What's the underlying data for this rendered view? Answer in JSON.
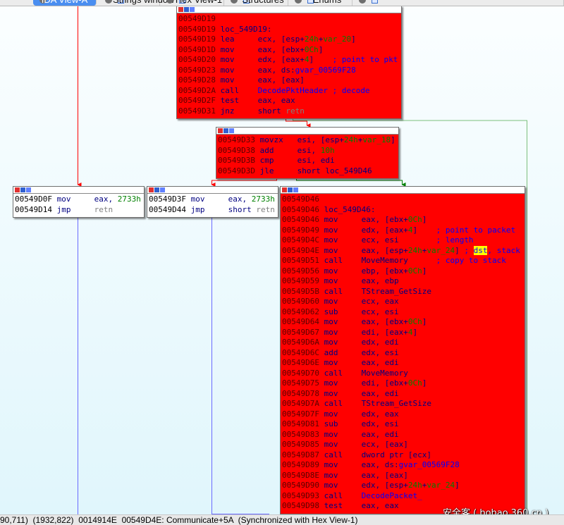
{
  "tabs": [
    {
      "label": "IDA View-A",
      "active": true
    },
    {
      "label": "Strings window",
      "active": false
    },
    {
      "label": "Hex View-1",
      "active": false
    },
    {
      "label": "Structures",
      "active": false
    },
    {
      "label": "Enums",
      "active": false
    }
  ],
  "colors": {
    "block_bg": "#ff0000",
    "edge_true": "#008000",
    "edge_false": "#ff0000",
    "edge_uncond": "#0000ff",
    "number": "#008000",
    "name": "#0000ff",
    "mnemonic": "#000080"
  },
  "blocks": [
    {
      "id": "loc_549D19",
      "style": "red",
      "lines": [
        {
          "addr": "00549D19",
          "mnem": "",
          "ops": []
        },
        {
          "addr": "00549D19",
          "mnem": "",
          "ops": [
            [
              "loc_549D19:",
              ""
            ]
          ]
        },
        {
          "addr": "00549D19",
          "mnem": "lea",
          "ops": [
            [
              "ecx, [esp+",
              ""
            ],
            [
              "24h",
              "g"
            ],
            [
              "+",
              ""
            ],
            [
              "var_20",
              "g"
            ],
            [
              "]",
              ""
            ]
          ]
        },
        {
          "addr": "00549D1D",
          "mnem": "mov",
          "ops": [
            [
              "eax, [ebx+",
              ""
            ],
            [
              "0Ch",
              "g"
            ],
            [
              "]",
              ""
            ]
          ]
        },
        {
          "addr": "00549D20",
          "mnem": "mov",
          "ops": [
            [
              "edx, [eax+",
              ""
            ],
            [
              "4",
              "g"
            ],
            [
              "]    ",
              ""
            ],
            [
              "; point to pkt",
              "b"
            ]
          ]
        },
        {
          "addr": "00549D23",
          "mnem": "mov",
          "ops": [
            [
              "eax, ds:",
              ""
            ],
            [
              "gvar_00569F28",
              "b"
            ]
          ]
        },
        {
          "addr": "00549D28",
          "mnem": "mov",
          "ops": [
            [
              "eax, [eax]",
              ""
            ]
          ]
        },
        {
          "addr": "00549D2A",
          "mnem": "call",
          "ops": [
            [
              "DecodePktHeader",
              "b"
            ],
            [
              " ",
              ""
            ],
            [
              "; decode",
              "b"
            ]
          ]
        },
        {
          "addr": "00549D2F",
          "mnem": "test",
          "ops": [
            [
              "eax, eax",
              ""
            ]
          ]
        },
        {
          "addr": "00549D31",
          "mnem": "jnz",
          "ops": [
            [
              "short ",
              ""
            ],
            [
              "retn",
              "gray"
            ]
          ]
        }
      ]
    },
    {
      "id": "loc_549D33",
      "style": "red",
      "lines": [
        {
          "addr": "00549D33",
          "mnem": "movzx",
          "ops": [
            [
              "esi, [esp+",
              ""
            ],
            [
              "24h",
              "g"
            ],
            [
              "+",
              ""
            ],
            [
              "var_18",
              "g"
            ],
            [
              "]",
              ""
            ]
          ]
        },
        {
          "addr": "00549D38",
          "mnem": "add",
          "ops": [
            [
              "esi, ",
              ""
            ],
            [
              "10h",
              "g"
            ]
          ]
        },
        {
          "addr": "00549D3B",
          "mnem": "cmp",
          "ops": [
            [
              "esi, edi",
              ""
            ]
          ]
        },
        {
          "addr": "00549D3D",
          "mnem": "jle",
          "ops": [
            [
              "short loc_549D46",
              ""
            ]
          ]
        }
      ]
    },
    {
      "id": "loc_549D0F",
      "style": "white",
      "lines": [
        {
          "addr": "00549D0F",
          "mnem": "mov",
          "ops": [
            [
              "eax, ",
              ""
            ],
            [
              "2733h",
              "g"
            ]
          ]
        },
        {
          "addr": "00549D14",
          "mnem": "jmp",
          "ops": [
            [
              "retn",
              "gray"
            ]
          ]
        }
      ]
    },
    {
      "id": "loc_549D3F",
      "style": "white",
      "lines": [
        {
          "addr": "00549D3F",
          "mnem": "mov",
          "ops": [
            [
              "eax, ",
              ""
            ],
            [
              "2733h",
              "g"
            ]
          ]
        },
        {
          "addr": "00549D44",
          "mnem": "jmp",
          "ops": [
            [
              "short ",
              ""
            ],
            [
              "retn",
              "gray"
            ]
          ]
        }
      ]
    },
    {
      "id": "loc_549D46",
      "style": "red",
      "lines": [
        {
          "addr": "00549D46",
          "mnem": "",
          "ops": []
        },
        {
          "addr": "00549D46",
          "mnem": "",
          "ops": [
            [
              "loc_549D46:",
              ""
            ]
          ]
        },
        {
          "addr": "00549D46",
          "mnem": "mov",
          "ops": [
            [
              "eax, [ebx+",
              ""
            ],
            [
              "0Ch",
              "g"
            ],
            [
              "]",
              ""
            ]
          ]
        },
        {
          "addr": "00549D49",
          "mnem": "mov",
          "ops": [
            [
              "edx, [eax+",
              ""
            ],
            [
              "4",
              "g"
            ],
            [
              "]    ",
              ""
            ],
            [
              "; point to packet",
              "b"
            ]
          ]
        },
        {
          "addr": "00549D4C",
          "mnem": "mov",
          "ops": [
            [
              "ecx, esi        ",
              ""
            ],
            [
              "; length",
              "b"
            ]
          ]
        },
        {
          "addr": "00549D4E",
          "mnem": "mov",
          "ops": [
            [
              "eax, [esp+",
              ""
            ],
            [
              "24h",
              "g"
            ],
            [
              "+",
              ""
            ],
            [
              "var_24",
              "g"
            ],
            [
              "] ",
              ""
            ],
            [
              "; ",
              "b"
            ],
            [
              "dst",
              "hl"
            ],
            [
              ", stack",
              "b"
            ]
          ]
        },
        {
          "addr": "00549D51",
          "mnem": "call",
          "ops": [
            [
              "MoveMemory      ",
              ""
            ],
            [
              "; copy to stack",
              "b"
            ]
          ]
        },
        {
          "addr": "00549D56",
          "mnem": "mov",
          "ops": [
            [
              "ebp, [ebx+",
              ""
            ],
            [
              "0Ch",
              "g"
            ],
            [
              "]",
              ""
            ]
          ]
        },
        {
          "addr": "00549D59",
          "mnem": "mov",
          "ops": [
            [
              "eax, ebp",
              ""
            ]
          ]
        },
        {
          "addr": "00549D5B",
          "mnem": "call",
          "ops": [
            [
              "TStream_GetSize",
              ""
            ]
          ]
        },
        {
          "addr": "00549D60",
          "mnem": "mov",
          "ops": [
            [
              "ecx, eax",
              ""
            ]
          ]
        },
        {
          "addr": "00549D62",
          "mnem": "sub",
          "ops": [
            [
              "ecx, esi",
              ""
            ]
          ]
        },
        {
          "addr": "00549D64",
          "mnem": "mov",
          "ops": [
            [
              "eax, [ebx+",
              ""
            ],
            [
              "0Ch",
              "g"
            ],
            [
              "]",
              ""
            ]
          ]
        },
        {
          "addr": "00549D67",
          "mnem": "mov",
          "ops": [
            [
              "edi, [eax+",
              ""
            ],
            [
              "4",
              "g"
            ],
            [
              "]",
              ""
            ]
          ]
        },
        {
          "addr": "00549D6A",
          "mnem": "mov",
          "ops": [
            [
              "edx, edi",
              ""
            ]
          ]
        },
        {
          "addr": "00549D6C",
          "mnem": "add",
          "ops": [
            [
              "edx, esi",
              ""
            ]
          ]
        },
        {
          "addr": "00549D6E",
          "mnem": "mov",
          "ops": [
            [
              "eax, edi",
              ""
            ]
          ]
        },
        {
          "addr": "00549D70",
          "mnem": "call",
          "ops": [
            [
              "MoveMemory",
              ""
            ]
          ]
        },
        {
          "addr": "00549D75",
          "mnem": "mov",
          "ops": [
            [
              "edi, [ebx+",
              ""
            ],
            [
              "0Ch",
              "g"
            ],
            [
              "]",
              ""
            ]
          ]
        },
        {
          "addr": "00549D78",
          "mnem": "mov",
          "ops": [
            [
              "eax, edi",
              ""
            ]
          ]
        },
        {
          "addr": "00549D7A",
          "mnem": "call",
          "ops": [
            [
              "TStream_GetSize",
              ""
            ]
          ]
        },
        {
          "addr": "00549D7F",
          "mnem": "mov",
          "ops": [
            [
              "edx, eax",
              ""
            ]
          ]
        },
        {
          "addr": "00549D81",
          "mnem": "sub",
          "ops": [
            [
              "edx, esi",
              ""
            ]
          ]
        },
        {
          "addr": "00549D83",
          "mnem": "mov",
          "ops": [
            [
              "eax, edi",
              ""
            ]
          ]
        },
        {
          "addr": "00549D85",
          "mnem": "mov",
          "ops": [
            [
              "ecx, [eax]",
              ""
            ]
          ]
        },
        {
          "addr": "00549D87",
          "mnem": "call",
          "ops": [
            [
              "dword ptr [ecx]",
              ""
            ]
          ]
        },
        {
          "addr": "00549D89",
          "mnem": "mov",
          "ops": [
            [
              "eax, ds:",
              ""
            ],
            [
              "gvar_00569F28",
              "b"
            ]
          ]
        },
        {
          "addr": "00549D8E",
          "mnem": "mov",
          "ops": [
            [
              "eax, [eax]",
              ""
            ]
          ]
        },
        {
          "addr": "00549D90",
          "mnem": "mov",
          "ops": [
            [
              "edx, [esp+",
              ""
            ],
            [
              "24h",
              "g"
            ],
            [
              "+",
              ""
            ],
            [
              "var_24",
              "g"
            ],
            [
              "]",
              ""
            ]
          ]
        },
        {
          "addr": "00549D93",
          "mnem": "call",
          "ops": [
            [
              "DecodePacket_",
              "b"
            ]
          ]
        },
        {
          "addr": "00549D98",
          "mnem": "test",
          "ops": [
            [
              "eax, eax",
              ""
            ]
          ]
        }
      ]
    }
  ],
  "status": {
    "text": "90,711)  (1932,822)  0014914E  00549D4E: Communicate+5A  (Synchronized with Hex View-1)"
  },
  "watermark": "安全客 ( bobao.360.cn )"
}
